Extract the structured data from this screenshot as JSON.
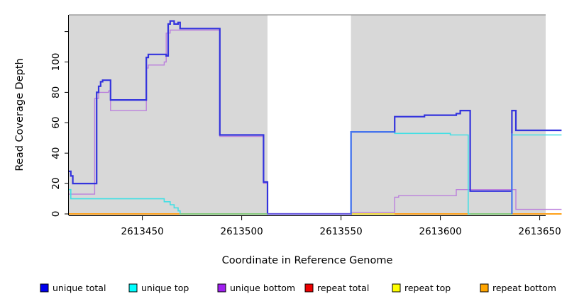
{
  "chart_data": {
    "type": "line",
    "subtype": "step-coverage",
    "title": "",
    "xlabel": "Coordinate in Reference Genome",
    "ylabel": "Read Coverage Depth",
    "xlim": [
      2613413,
      2613661
    ],
    "ylim": [
      0,
      131
    ],
    "grid": false,
    "plot_background_color": "#D8D8D8",
    "gap_background_color": "#FFFFFF",
    "background_regions": [
      {
        "name": "mappable-region-left",
        "x0": 2613413,
        "x1": 2613513,
        "color": "#D8D8D8"
      },
      {
        "name": "gap-region",
        "x0": 2613513,
        "x1": 2613555,
        "color": "#FFFFFF"
      },
      {
        "name": "mappable-region-right",
        "x0": 2613555,
        "x1": 2613653,
        "color": "#D8D8D8"
      }
    ],
    "x_ticks": [
      {
        "value": 2613450,
        "label": "2613450"
      },
      {
        "value": 2613500,
        "label": "2613500"
      },
      {
        "value": 2613550,
        "label": "2613550"
      },
      {
        "value": 2613600,
        "label": "2613600"
      },
      {
        "value": 2613650,
        "label": "2613650"
      }
    ],
    "y_ticks": [
      {
        "value": 0,
        "label": "0"
      },
      {
        "value": 20,
        "label": "20"
      },
      {
        "value": 40,
        "label": "40"
      },
      {
        "value": 60,
        "label": "60"
      },
      {
        "value": 80,
        "label": "80"
      },
      {
        "value": 100,
        "label": "100"
      },
      {
        "value": 120,
        "label": ""
      }
    ],
    "series": [
      {
        "name": "repeat total",
        "color": "#DD0000",
        "width": 1.2,
        "segments": [
          [
            [
              2613413,
              0
            ],
            [
              2613661,
              0
            ]
          ]
        ]
      },
      {
        "name": "repeat top",
        "color": "#FFFF00",
        "width": 1.2,
        "segments": [
          [
            [
              2613413,
              0
            ],
            [
              2613661,
              0
            ]
          ]
        ]
      },
      {
        "name": "repeat bottom",
        "color": "#FFA018",
        "width": 2,
        "segments": [
          [
            [
              2613413,
              0
            ],
            [
              2613513,
              0
            ]
          ],
          [
            [
              2613577,
              0
            ],
            [
              2613661,
              0
            ]
          ]
        ]
      },
      {
        "name": "unique bottom",
        "color": "#BB80DC",
        "width": 1.4,
        "segments": [
          [
            [
              2613413,
              13
            ],
            [
              2613426,
              13
            ],
            [
              2613426,
              76
            ],
            [
              2613428,
              76
            ],
            [
              2613428,
              80
            ],
            [
              2613433,
              80
            ],
            [
              2613433,
              81
            ],
            [
              2613434,
              81
            ],
            [
              2613434,
              68
            ],
            [
              2613452,
              68
            ],
            [
              2613452,
              96
            ],
            [
              2613453,
              96
            ],
            [
              2613453,
              98
            ],
            [
              2613461,
              98
            ],
            [
              2613461,
              100
            ],
            [
              2613462,
              100
            ],
            [
              2613462,
              119
            ],
            [
              2613464,
              119
            ],
            [
              2613464,
              121
            ],
            [
              2613489,
              121
            ],
            [
              2613489,
              51
            ],
            [
              2613511,
              51
            ],
            [
              2613511,
              20
            ],
            [
              2613513,
              20
            ],
            [
              2613513,
              0
            ],
            [
              2613555,
              0
            ],
            [
              2613555,
              1
            ],
            [
              2613577,
              1
            ],
            [
              2613577,
              11
            ],
            [
              2613579,
              11
            ],
            [
              2613579,
              12
            ],
            [
              2613608,
              12
            ],
            [
              2613608,
              16
            ],
            [
              2613638,
              16
            ],
            [
              2613638,
              3
            ],
            [
              2613661,
              3
            ]
          ]
        ]
      },
      {
        "name": "unique top",
        "color": "#44DFE4",
        "width": 1.6,
        "segments": [
          [
            [
              2613413,
              16
            ],
            [
              2613414,
              16
            ],
            [
              2613414,
              10
            ],
            [
              2613461,
              10
            ],
            [
              2613461,
              8
            ],
            [
              2613464,
              8
            ],
            [
              2613464,
              6
            ],
            [
              2613466,
              6
            ],
            [
              2613466,
              4
            ],
            [
              2613468,
              4
            ],
            [
              2613468,
              2
            ],
            [
              2613469,
              2
            ],
            [
              2613469,
              0
            ],
            [
              2613555,
              0
            ],
            [
              2613555,
              54
            ],
            [
              2613577,
              54
            ],
            [
              2613577,
              53
            ],
            [
              2613605,
              53
            ],
            [
              2613605,
              52
            ],
            [
              2613614,
              52
            ],
            [
              2613614,
              0
            ],
            [
              2613636,
              0
            ],
            [
              2613636,
              52
            ],
            [
              2613661,
              52
            ]
          ]
        ]
      },
      {
        "name": "unique total",
        "color": "#3333DD",
        "width": 2.2,
        "segments": [
          [
            [
              2613413,
              28
            ],
            [
              2613414,
              28
            ],
            [
              2613414,
              25
            ],
            [
              2613415,
              25
            ],
            [
              2613415,
              20
            ],
            [
              2613427,
              20
            ],
            [
              2613427,
              80
            ],
            [
              2613428,
              80
            ],
            [
              2613428,
              84
            ],
            [
              2613429,
              84
            ],
            [
              2613429,
              87
            ],
            [
              2613430,
              87
            ],
            [
              2613430,
              88
            ],
            [
              2613434,
              88
            ],
            [
              2613434,
              75
            ],
            [
              2613452,
              75
            ],
            [
              2613452,
              103
            ],
            [
              2613453,
              103
            ],
            [
              2613453,
              105
            ],
            [
              2613462,
              105
            ],
            [
              2613462,
              104
            ],
            [
              2613463,
              104
            ],
            [
              2613463,
              125
            ],
            [
              2613464,
              125
            ],
            [
              2613464,
              127
            ],
            [
              2613466,
              127
            ],
            [
              2613466,
              125
            ],
            [
              2613468,
              125
            ],
            [
              2613468,
              126
            ],
            [
              2613469,
              126
            ],
            [
              2613469,
              122
            ],
            [
              2613489,
              122
            ],
            [
              2613489,
              52
            ],
            [
              2613511,
              52
            ],
            [
              2613511,
              21
            ],
            [
              2613513,
              21
            ],
            [
              2613513,
              0
            ],
            [
              2613555,
              0
            ],
            [
              2613555,
              54
            ],
            [
              2613577,
              54
            ],
            [
              2613577,
              64
            ],
            [
              2613592,
              64
            ],
            [
              2613592,
              65
            ],
            [
              2613608,
              65
            ],
            [
              2613608,
              66
            ],
            [
              2613610,
              66
            ],
            [
              2613610,
              68
            ],
            [
              2613615,
              68
            ],
            [
              2613615,
              15
            ],
            [
              2613636,
              15
            ],
            [
              2613636,
              68
            ],
            [
              2613638,
              68
            ],
            [
              2613638,
              55
            ],
            [
              2613661,
              55
            ]
          ]
        ]
      }
    ],
    "blend_segments": [
      {
        "name": "yellow-cyan-baseline-blend",
        "color": "#7CCD7C",
        "width": 1.6,
        "segments": [
          [
            [
              2613469,
              0
            ],
            [
              2613513,
              0
            ]
          ],
          [
            [
              2613615,
              0
            ],
            [
              2613636,
              0
            ]
          ]
        ]
      },
      {
        "name": "blue-purple-baseline-blend",
        "color": "#6655DD",
        "width": 2,
        "segments": [
          [
            [
              2613513,
              0
            ],
            [
              2613555,
              0
            ]
          ]
        ]
      },
      {
        "name": "blue-cyan-overlap-blend",
        "color": "#4477EE",
        "width": 2.2,
        "segments": [
          [
            [
              2613555,
              0
            ],
            [
              2613555,
              54
            ],
            [
              2613577,
              54
            ]
          ],
          [
            [
              2613636,
              0
            ],
            [
              2613636,
              53
            ]
          ]
        ]
      }
    ],
    "legend": {
      "position": "bottom",
      "items": [
        {
          "label": "unique total",
          "color": "#0000EE"
        },
        {
          "label": "unique top",
          "color": "#00FFFF"
        },
        {
          "label": "unique bottom",
          "color": "#A020F0"
        },
        {
          "label": "repeat total",
          "color": "#EE0000"
        },
        {
          "label": "repeat top",
          "color": "#FFFF00"
        },
        {
          "label": "repeat bottom",
          "color": "#FFA500"
        }
      ]
    }
  }
}
